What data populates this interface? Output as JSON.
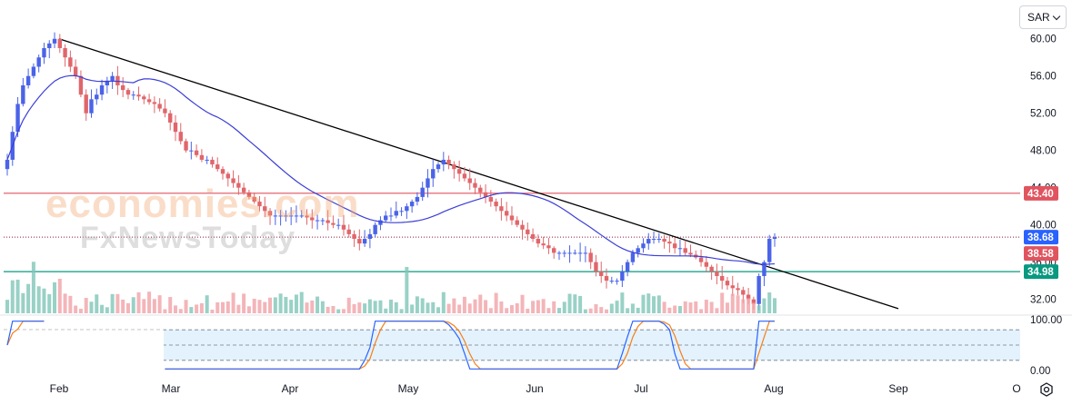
{
  "toolbar": {
    "currency": "SAR"
  },
  "watermark": {
    "line1": "economies.com",
    "line2": "FxNewsToday"
  },
  "colors": {
    "up": "#4a63e8",
    "down": "#e0666b",
    "ma": "#3b3fd6",
    "trend": "#000000",
    "resistance": "#e0545f",
    "support": "#089981",
    "last": "#2962ff",
    "k": "#2962ff",
    "d": "#f57f17",
    "band": "#e3f2fd",
    "vol_up": "#7fc6b8",
    "vol_down": "#f0a3a7"
  },
  "chart_data": {
    "type": "candlestick",
    "title": "",
    "y_axis": {
      "min": 30.5,
      "max": 63,
      "ticks": [
        60,
        56,
        52,
        48,
        44,
        40,
        36,
        32
      ],
      "tick_labels": [
        "60.00",
        "56.00",
        "52.00",
        "48.00",
        "44.00",
        "40.00",
        "36.00",
        "32.00"
      ]
    },
    "x_axis": {
      "labels": [
        "Feb",
        "Mar",
        "Apr",
        "May",
        "Jun",
        "Jul",
        "Aug",
        "Sep",
        "O"
      ]
    },
    "price_labels": [
      {
        "value": 43.4,
        "text": "43.40",
        "role": "resistance"
      },
      {
        "value": 38.68,
        "text": "38.68",
        "role": "last"
      },
      {
        "value": 38.58,
        "text": "38.58",
        "role": "previous"
      },
      {
        "value": 34.98,
        "text": "34.98",
        "role": "support"
      }
    ],
    "horizontal_lines": {
      "resistance": 43.4,
      "support": 34.98,
      "last_dotted": 38.68
    },
    "trendline": {
      "from": {
        "date": "Feb 1",
        "value": 60.0
      },
      "to": {
        "date": "Sep 1",
        "value": 31.0
      }
    },
    "series": [
      {
        "name": "Close",
        "values": [
          47,
          50,
          53,
          55,
          56,
          57,
          58,
          59,
          59.5,
          60,
          59,
          58,
          57,
          56,
          54,
          52,
          53.5,
          54,
          55,
          55.5,
          56,
          55,
          54.5,
          54,
          54,
          53.8,
          53.5,
          53.2,
          53,
          52.5,
          52,
          51,
          50,
          49,
          48,
          48,
          47.5,
          47,
          47,
          46.5,
          46,
          45.5,
          45,
          44.5,
          44,
          43.5,
          43,
          42.5,
          42,
          41.5,
          41,
          41,
          41,
          41,
          41,
          41,
          41,
          40.8,
          40.5,
          40.5,
          40.5,
          40.2,
          40,
          40,
          39.5,
          39,
          38.5,
          38,
          38.5,
          39,
          40,
          40.5,
          41,
          41,
          41.5,
          41.5,
          42,
          42.5,
          43,
          44,
          45,
          46,
          46.5,
          47,
          46.5,
          46,
          45.5,
          45,
          44.5,
          44,
          43.5,
          43,
          42.5,
          42,
          41.5,
          41,
          40.5,
          40,
          39.5,
          39,
          38.5,
          38,
          37.8,
          37.5,
          37,
          37,
          37,
          37,
          37,
          37,
          37,
          36,
          35,
          34.5,
          34,
          34,
          34,
          35,
          36,
          37,
          37.5,
          38,
          38.5,
          38.5,
          38.5,
          38.2,
          38,
          37.5,
          37.5,
          37,
          36.8,
          36.5,
          36,
          35.5,
          35,
          34.5,
          34,
          33.5,
          33.2,
          33,
          32.5,
          32,
          31.5,
          34.5,
          36,
          38.5,
          38.68
        ]
      },
      {
        "name": "MA",
        "values": []
      },
      {
        "name": "Volume",
        "values": []
      },
      {
        "name": "%K",
        "values": []
      },
      {
        "name": "%D",
        "values": []
      }
    ],
    "oscillator": {
      "y_axis": {
        "min": 0,
        "max": 100,
        "tick_labels": [
          "100.00",
          "0.00"
        ]
      },
      "band": [
        20,
        80
      ]
    }
  }
}
